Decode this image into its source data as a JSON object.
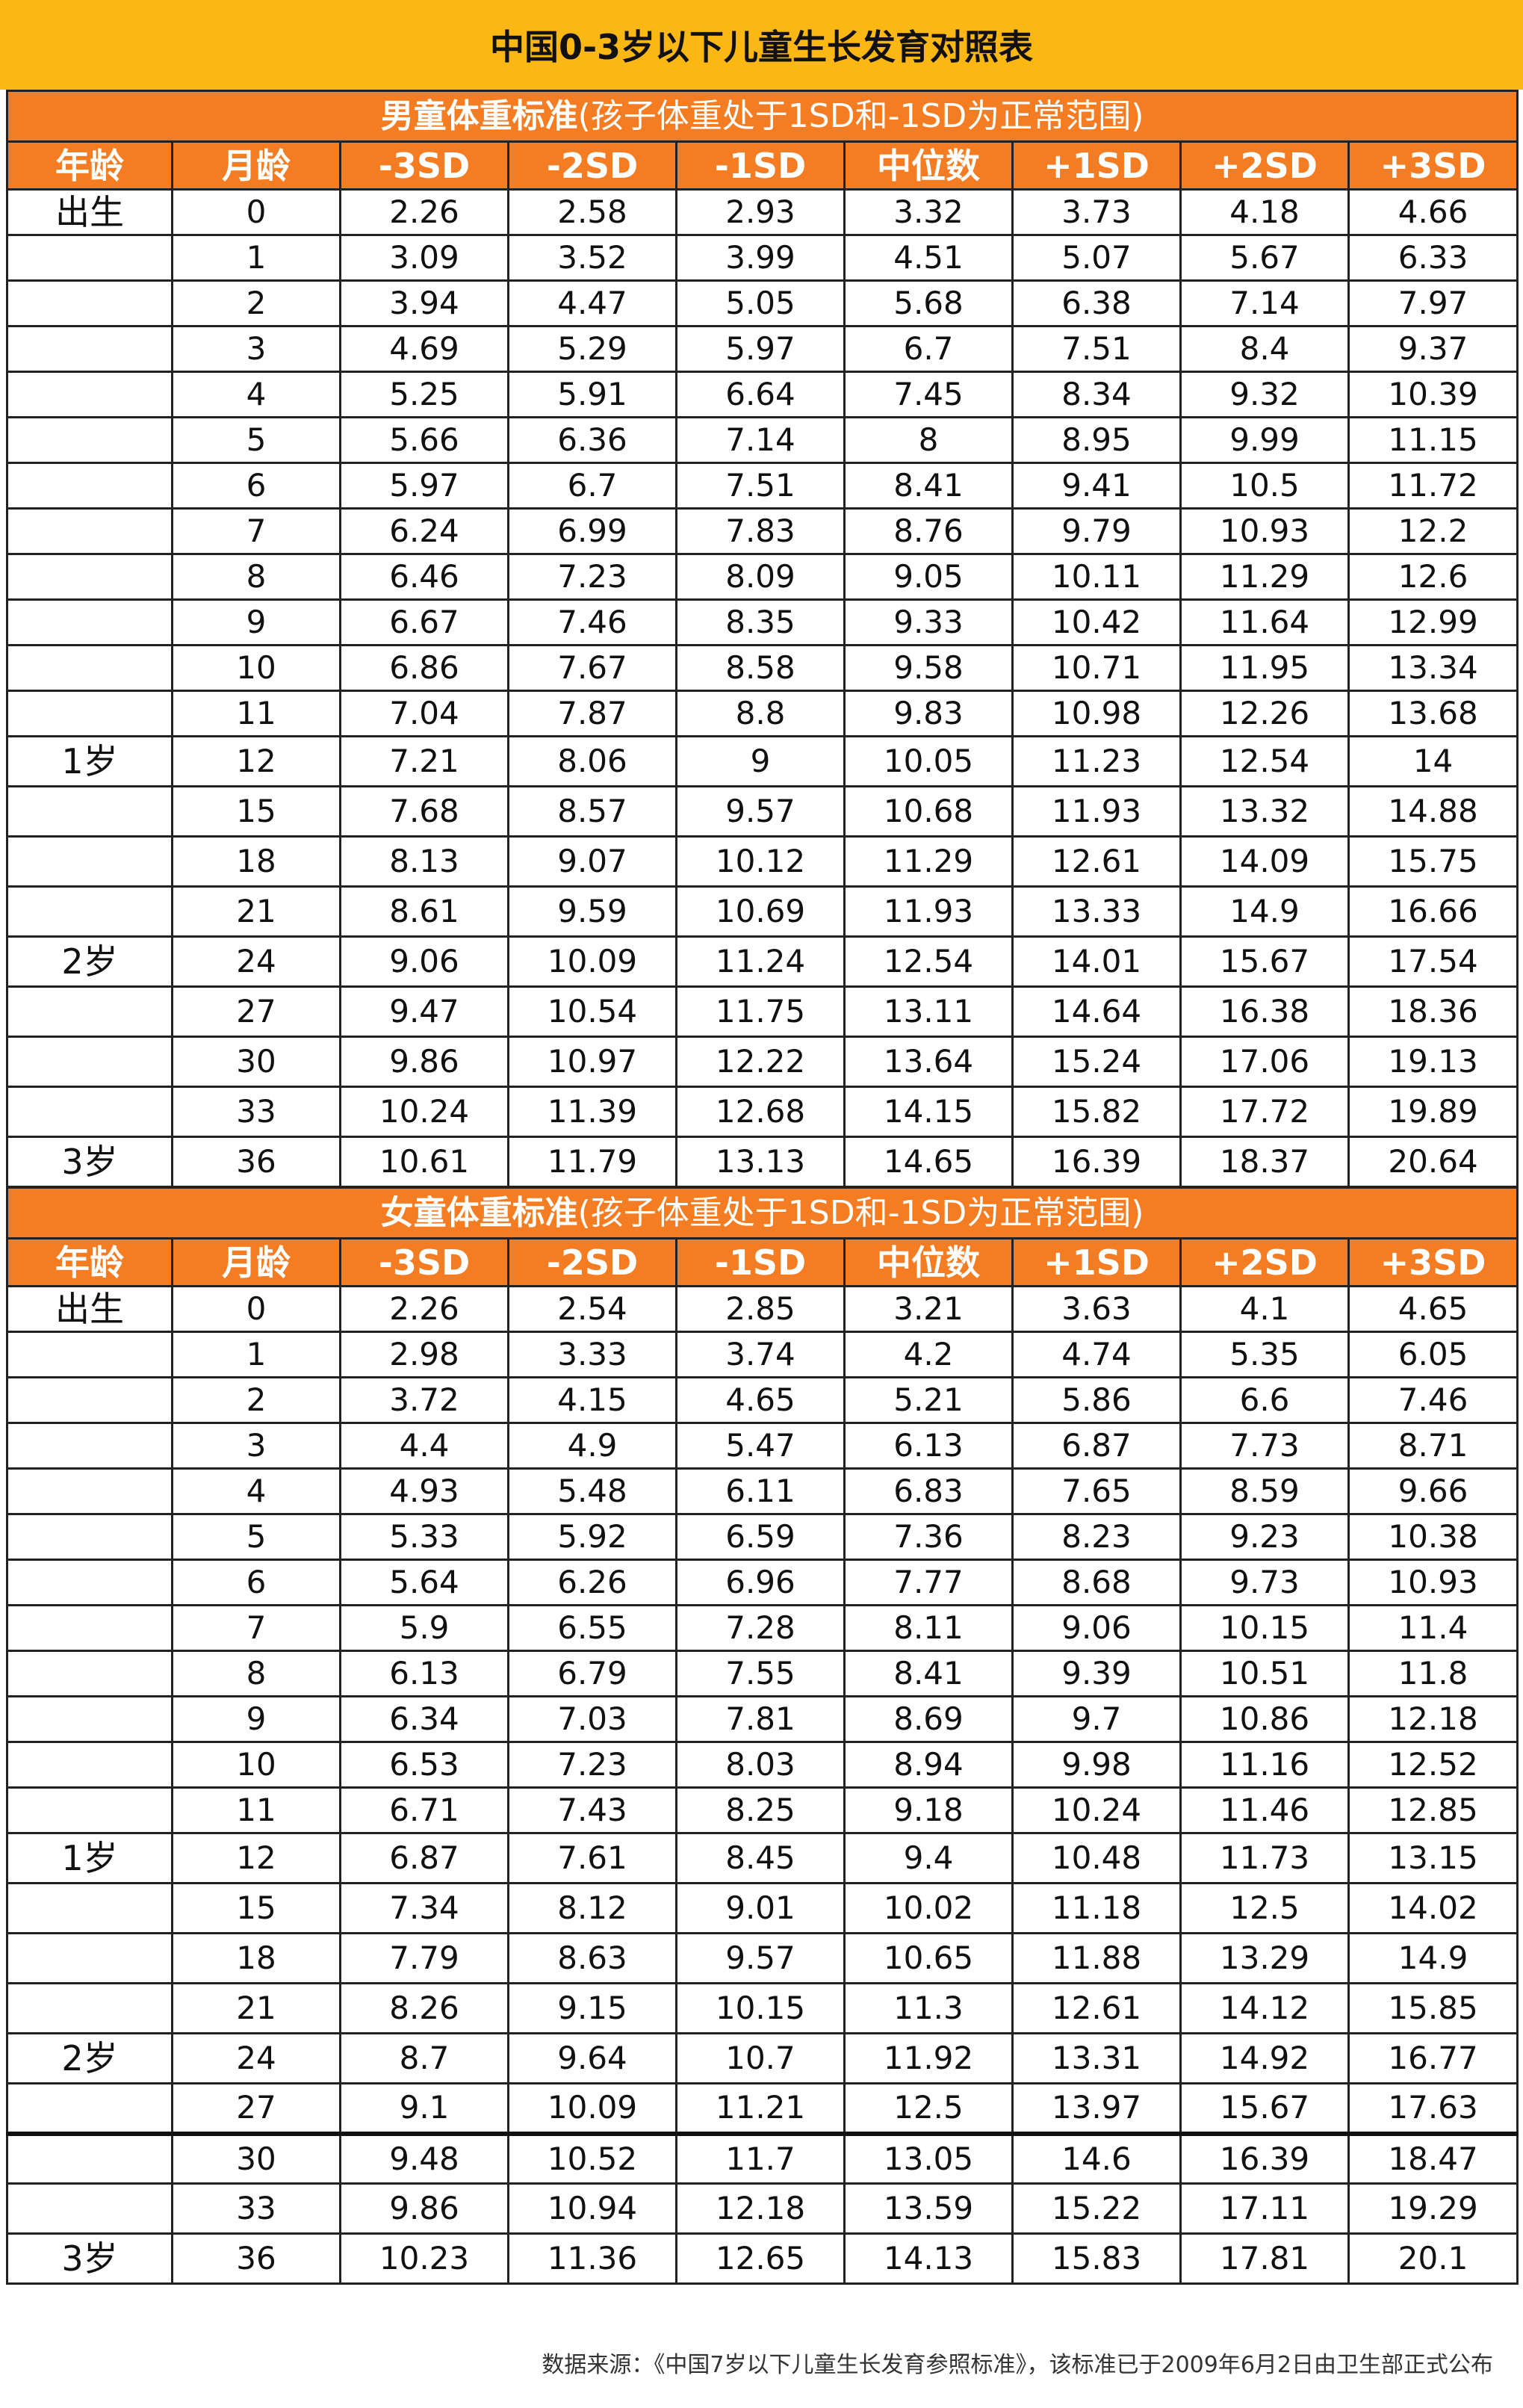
{
  "title": "中国0-3岁以下儿童生长发育对照表",
  "columns": [
    "年龄",
    "月龄",
    "-3SD",
    "-2SD",
    "-1SD",
    "中位数",
    "+1SD",
    "+2SD",
    "+3SD"
  ],
  "boys": {
    "heading": "男童体重标准",
    "note": "(孩子体重处于1SD和-1SD为正常范围)",
    "rows": [
      {
        "age": "出生",
        "month": "0",
        "v": [
          "2.26",
          "2.58",
          "2.93",
          "3.32",
          "3.73",
          "4.18",
          "4.66"
        ]
      },
      {
        "age": "",
        "month": "1",
        "v": [
          "3.09",
          "3.52",
          "3.99",
          "4.51",
          "5.07",
          "5.67",
          "6.33"
        ]
      },
      {
        "age": "",
        "month": "2",
        "v": [
          "3.94",
          "4.47",
          "5.05",
          "5.68",
          "6.38",
          "7.14",
          "7.97"
        ]
      },
      {
        "age": "",
        "month": "3",
        "v": [
          "4.69",
          "5.29",
          "5.97",
          "6.7",
          "7.51",
          "8.4",
          "9.37"
        ]
      },
      {
        "age": "",
        "month": "4",
        "v": [
          "5.25",
          "5.91",
          "6.64",
          "7.45",
          "8.34",
          "9.32",
          "10.39"
        ]
      },
      {
        "age": "",
        "month": "5",
        "v": [
          "5.66",
          "6.36",
          "7.14",
          "8",
          "8.95",
          "9.99",
          "11.15"
        ]
      },
      {
        "age": "",
        "month": "6",
        "v": [
          "5.97",
          "6.7",
          "7.51",
          "8.41",
          "9.41",
          "10.5",
          "11.72"
        ]
      },
      {
        "age": "",
        "month": "7",
        "v": [
          "6.24",
          "6.99",
          "7.83",
          "8.76",
          "9.79",
          "10.93",
          "12.2"
        ]
      },
      {
        "age": "",
        "month": "8",
        "v": [
          "6.46",
          "7.23",
          "8.09",
          "9.05",
          "10.11",
          "11.29",
          "12.6"
        ]
      },
      {
        "age": "",
        "month": "9",
        "v": [
          "6.67",
          "7.46",
          "8.35",
          "9.33",
          "10.42",
          "11.64",
          "12.99"
        ]
      },
      {
        "age": "",
        "month": "10",
        "v": [
          "6.86",
          "7.67",
          "8.58",
          "9.58",
          "10.71",
          "11.95",
          "13.34"
        ]
      },
      {
        "age": "",
        "month": "11",
        "v": [
          "7.04",
          "7.87",
          "8.8",
          "9.83",
          "10.98",
          "12.26",
          "13.68"
        ]
      },
      {
        "age": "1岁",
        "month": "12",
        "v": [
          "7.21",
          "8.06",
          "9",
          "10.05",
          "11.23",
          "12.54",
          "14"
        ]
      },
      {
        "age": "",
        "month": "15",
        "v": [
          "7.68",
          "8.57",
          "9.57",
          "10.68",
          "11.93",
          "13.32",
          "14.88"
        ]
      },
      {
        "age": "",
        "month": "18",
        "v": [
          "8.13",
          "9.07",
          "10.12",
          "11.29",
          "12.61",
          "14.09",
          "15.75"
        ]
      },
      {
        "age": "",
        "month": "21",
        "v": [
          "8.61",
          "9.59",
          "10.69",
          "11.93",
          "13.33",
          "14.9",
          "16.66"
        ]
      },
      {
        "age": "2岁",
        "month": "24",
        "v": [
          "9.06",
          "10.09",
          "11.24",
          "12.54",
          "14.01",
          "15.67",
          "17.54"
        ]
      },
      {
        "age": "",
        "month": "27",
        "v": [
          "9.47",
          "10.54",
          "11.75",
          "13.11",
          "14.64",
          "16.38",
          "18.36"
        ]
      },
      {
        "age": "",
        "month": "30",
        "v": [
          "9.86",
          "10.97",
          "12.22",
          "13.64",
          "15.24",
          "17.06",
          "19.13"
        ]
      },
      {
        "age": "",
        "month": "33",
        "v": [
          "10.24",
          "11.39",
          "12.68",
          "14.15",
          "15.82",
          "17.72",
          "19.89"
        ]
      },
      {
        "age": "3岁",
        "month": "36",
        "v": [
          "10.61",
          "11.79",
          "13.13",
          "14.65",
          "16.39",
          "18.37",
          "20.64"
        ]
      }
    ]
  },
  "girls": {
    "heading": "女童体重标准",
    "note": "(孩子体重处于1SD和-1SD为正常范围)",
    "rows": [
      {
        "age": "出生",
        "month": "0",
        "v": [
          "2.26",
          "2.54",
          "2.85",
          "3.21",
          "3.63",
          "4.1",
          "4.65"
        ]
      },
      {
        "age": "",
        "month": "1",
        "v": [
          "2.98",
          "3.33",
          "3.74",
          "4.2",
          "4.74",
          "5.35",
          "6.05"
        ]
      },
      {
        "age": "",
        "month": "2",
        "v": [
          "3.72",
          "4.15",
          "4.65",
          "5.21",
          "5.86",
          "6.6",
          "7.46"
        ]
      },
      {
        "age": "",
        "month": "3",
        "v": [
          "4.4",
          "4.9",
          "5.47",
          "6.13",
          "6.87",
          "7.73",
          "8.71"
        ]
      },
      {
        "age": "",
        "month": "4",
        "v": [
          "4.93",
          "5.48",
          "6.11",
          "6.83",
          "7.65",
          "8.59",
          "9.66"
        ]
      },
      {
        "age": "",
        "month": "5",
        "v": [
          "5.33",
          "5.92",
          "6.59",
          "7.36",
          "8.23",
          "9.23",
          "10.38"
        ]
      },
      {
        "age": "",
        "month": "6",
        "v": [
          "5.64",
          "6.26",
          "6.96",
          "7.77",
          "8.68",
          "9.73",
          "10.93"
        ]
      },
      {
        "age": "",
        "month": "7",
        "v": [
          "5.9",
          "6.55",
          "7.28",
          "8.11",
          "9.06",
          "10.15",
          "11.4"
        ]
      },
      {
        "age": "",
        "month": "8",
        "v": [
          "6.13",
          "6.79",
          "7.55",
          "8.41",
          "9.39",
          "10.51",
          "11.8"
        ]
      },
      {
        "age": "",
        "month": "9",
        "v": [
          "6.34",
          "7.03",
          "7.81",
          "8.69",
          "9.7",
          "10.86",
          "12.18"
        ]
      },
      {
        "age": "",
        "month": "10",
        "v": [
          "6.53",
          "7.23",
          "8.03",
          "8.94",
          "9.98",
          "11.16",
          "12.52"
        ]
      },
      {
        "age": "",
        "month": "11",
        "v": [
          "6.71",
          "7.43",
          "8.25",
          "9.18",
          "10.24",
          "11.46",
          "12.85"
        ]
      },
      {
        "age": "1岁",
        "month": "12",
        "v": [
          "6.87",
          "7.61",
          "8.45",
          "9.4",
          "10.48",
          "11.73",
          "13.15"
        ]
      },
      {
        "age": "",
        "month": "15",
        "v": [
          "7.34",
          "8.12",
          "9.01",
          "10.02",
          "11.18",
          "12.5",
          "14.02"
        ]
      },
      {
        "age": "",
        "month": "18",
        "v": [
          "7.79",
          "8.63",
          "9.57",
          "10.65",
          "11.88",
          "13.29",
          "14.9"
        ]
      },
      {
        "age": "",
        "month": "21",
        "v": [
          "8.26",
          "9.15",
          "10.15",
          "11.3",
          "12.61",
          "14.12",
          "15.85"
        ]
      },
      {
        "age": "2岁",
        "month": "24",
        "v": [
          "8.7",
          "9.64",
          "10.7",
          "11.92",
          "13.31",
          "14.92",
          "16.77"
        ]
      },
      {
        "age": "",
        "month": "27",
        "v": [
          "9.1",
          "10.09",
          "11.21",
          "12.5",
          "13.97",
          "15.67",
          "17.63"
        ]
      },
      {
        "age": "",
        "month": "30",
        "v": [
          "9.48",
          "10.52",
          "11.7",
          "13.05",
          "14.6",
          "16.39",
          "18.47"
        ]
      },
      {
        "age": "",
        "month": "33",
        "v": [
          "9.86",
          "10.94",
          "12.18",
          "13.59",
          "15.22",
          "17.11",
          "19.29"
        ]
      },
      {
        "age": "3岁",
        "month": "36",
        "v": [
          "10.23",
          "11.36",
          "12.65",
          "14.13",
          "15.83",
          "17.81",
          "20.1"
        ]
      }
    ]
  },
  "footer": "数据来源：《中国7岁以下儿童生长发育参照标准》，该标准已于2009年6月2日由卫生部正式公布"
}
